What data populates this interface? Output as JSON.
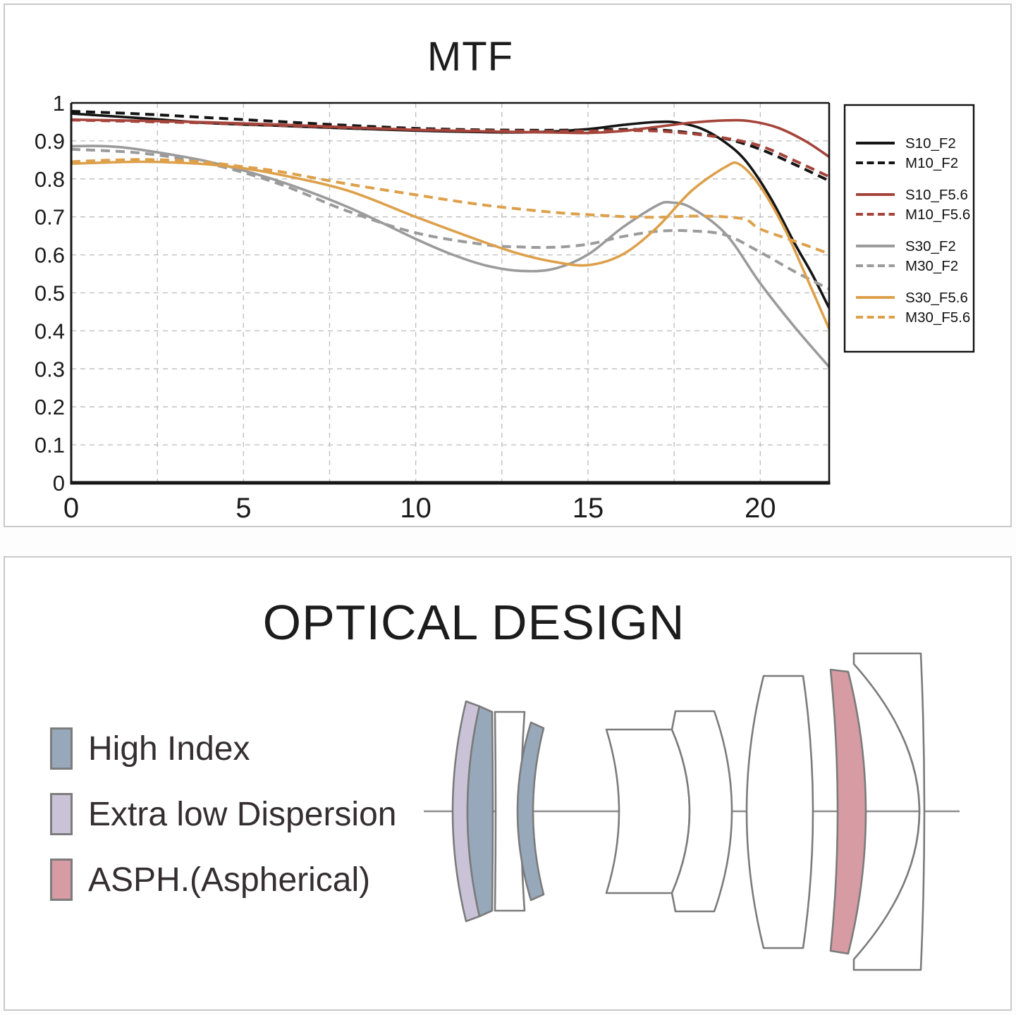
{
  "mtf_panel": {
    "title": "MTF",
    "chart_data": {
      "type": "line",
      "title": "MTF",
      "xlabel": "",
      "ylabel": "",
      "xlim": [
        0,
        22
      ],
      "ylim": [
        0,
        1
      ],
      "xticks": [
        0,
        5,
        10,
        15,
        20
      ],
      "yticks": [
        0,
        0.1,
        0.2,
        0.3,
        0.4,
        0.5,
        0.6,
        0.7,
        0.8,
        0.9,
        1
      ],
      "grid": {
        "on": true,
        "style": "dashed",
        "x_interval": 2.5,
        "y_interval": 0.1
      },
      "legend_position": "right",
      "frame_color": "#161616",
      "grid_color": "#bcbcbc",
      "series": [
        {
          "name": "S10_F2",
          "color": "#141414",
          "dash": false,
          "points": [
            [
              0,
              0.972
            ],
            [
              2,
              0.96
            ],
            [
              4,
              0.947
            ],
            [
              6,
              0.94
            ],
            [
              8,
              0.933
            ],
            [
              10,
              0.927
            ],
            [
              12,
              0.923
            ],
            [
              13.5,
              0.923
            ],
            [
              15,
              0.931
            ],
            [
              16,
              0.942
            ],
            [
              17,
              0.95
            ],
            [
              17.6,
              0.948
            ],
            [
              18.3,
              0.932
            ],
            [
              19,
              0.895
            ],
            [
              19.6,
              0.845
            ],
            [
              20.3,
              0.75
            ],
            [
              21,
              0.63
            ],
            [
              21.5,
              0.55
            ],
            [
              22,
              0.46
            ]
          ]
        },
        {
          "name": "M10_F2",
          "color": "#141414",
          "dash": true,
          "points": [
            [
              0,
              0.978
            ],
            [
              2,
              0.971
            ],
            [
              4,
              0.961
            ],
            [
              6,
              0.951
            ],
            [
              8,
              0.941
            ],
            [
              10,
              0.933
            ],
            [
              12,
              0.929
            ],
            [
              14,
              0.928
            ],
            [
              16,
              0.93
            ],
            [
              17,
              0.929
            ],
            [
              18,
              0.921
            ],
            [
              19,
              0.906
            ],
            [
              20,
              0.878
            ],
            [
              21,
              0.838
            ],
            [
              22,
              0.795
            ]
          ]
        },
        {
          "name": "S10_F5.6",
          "color": "#a5443a",
          "dash": false,
          "points": [
            [
              0,
              0.956
            ],
            [
              2,
              0.953
            ],
            [
              4,
              0.949
            ],
            [
              6,
              0.943
            ],
            [
              8,
              0.936
            ],
            [
              10,
              0.929
            ],
            [
              12,
              0.925
            ],
            [
              14,
              0.922
            ],
            [
              15,
              0.921
            ],
            [
              16,
              0.926
            ],
            [
              17,
              0.937
            ],
            [
              18,
              0.948
            ],
            [
              19,
              0.954
            ],
            [
              19.7,
              0.952
            ],
            [
              20.5,
              0.935
            ],
            [
              21.3,
              0.9
            ],
            [
              22,
              0.858
            ]
          ]
        },
        {
          "name": "M10_F5.6",
          "color": "#a5443a",
          "dash": true,
          "points": [
            [
              0,
              0.955
            ],
            [
              2,
              0.951
            ],
            [
              4,
              0.947
            ],
            [
              6,
              0.941
            ],
            [
              8,
              0.935
            ],
            [
              10,
              0.93
            ],
            [
              12,
              0.927
            ],
            [
              14,
              0.925
            ],
            [
              16,
              0.927
            ],
            [
              17,
              0.926
            ],
            [
              18,
              0.919
            ],
            [
              19,
              0.907
            ],
            [
              20,
              0.887
            ],
            [
              21,
              0.848
            ],
            [
              22,
              0.806
            ]
          ]
        },
        {
          "name": "S30_F2",
          "color": "#9b9b9b",
          "dash": false,
          "points": [
            [
              0,
              0.886
            ],
            [
              1,
              0.886
            ],
            [
              2,
              0.877
            ],
            [
              4,
              0.845
            ],
            [
              6,
              0.795
            ],
            [
              8,
              0.727
            ],
            [
              10,
              0.642
            ],
            [
              11,
              0.603
            ],
            [
              12,
              0.573
            ],
            [
              13,
              0.558
            ],
            [
              14,
              0.563
            ],
            [
              15,
              0.601
            ],
            [
              16,
              0.672
            ],
            [
              17,
              0.73
            ],
            [
              17.4,
              0.738
            ],
            [
              18,
              0.724
            ],
            [
              19,
              0.655
            ],
            [
              20,
              0.525
            ],
            [
              21,
              0.41
            ],
            [
              22,
              0.305
            ]
          ]
        },
        {
          "name": "M30_F2",
          "color": "#9b9b9b",
          "dash": true,
          "points": [
            [
              0,
              0.878
            ],
            [
              2,
              0.868
            ],
            [
              4,
              0.84
            ],
            [
              6,
              0.788
            ],
            [
              8,
              0.716
            ],
            [
              10,
              0.658
            ],
            [
              12,
              0.627
            ],
            [
              13,
              0.621
            ],
            [
              14,
              0.62
            ],
            [
              15,
              0.628
            ],
            [
              16,
              0.648
            ],
            [
              17,
              0.662
            ],
            [
              18,
              0.663
            ],
            [
              19,
              0.652
            ],
            [
              20,
              0.607
            ],
            [
              21,
              0.556
            ],
            [
              22,
              0.51
            ]
          ]
        },
        {
          "name": "S30_F5.6",
          "color": "#dda04b",
          "dash": false,
          "points": [
            [
              0,
              0.84
            ],
            [
              1,
              0.843
            ],
            [
              2,
              0.845
            ],
            [
              3,
              0.843
            ],
            [
              4,
              0.838
            ],
            [
              5,
              0.828
            ],
            [
              6,
              0.812
            ],
            [
              8,
              0.77
            ],
            [
              10,
              0.7
            ],
            [
              12,
              0.633
            ],
            [
              13,
              0.603
            ],
            [
              14,
              0.582
            ],
            [
              15,
              0.573
            ],
            [
              16,
              0.601
            ],
            [
              17,
              0.672
            ],
            [
              18,
              0.768
            ],
            [
              19,
              0.832
            ],
            [
              19.4,
              0.838
            ],
            [
              20,
              0.78
            ],
            [
              20.7,
              0.67
            ],
            [
              21.3,
              0.55
            ],
            [
              22,
              0.405
            ]
          ]
        },
        {
          "name": "M30_F5.6",
          "color": "#dda04b",
          "dash": true,
          "points": [
            [
              0,
              0.845
            ],
            [
              1,
              0.849
            ],
            [
              2,
              0.851
            ],
            [
              3,
              0.849
            ],
            [
              4,
              0.843
            ],
            [
              5,
              0.832
            ],
            [
              6,
              0.82
            ],
            [
              8,
              0.787
            ],
            [
              10,
              0.758
            ],
            [
              12,
              0.731
            ],
            [
              14,
              0.712
            ],
            [
              15,
              0.706
            ],
            [
              16,
              0.701
            ],
            [
              17,
              0.699
            ],
            [
              18,
              0.702
            ],
            [
              19,
              0.7
            ],
            [
              19.6,
              0.692
            ],
            [
              20,
              0.668
            ],
            [
              21,
              0.636
            ],
            [
              22,
              0.603
            ]
          ]
        }
      ]
    }
  },
  "optical_panel": {
    "title": "OPTICAL DESIGN",
    "legend": [
      {
        "label": "High Index",
        "material": "high-index"
      },
      {
        "label": "Extra low Dispersion",
        "material": "extra-low-dispersion"
      },
      {
        "label": "ASPH.(Aspherical)",
        "material": "aspherical"
      }
    ],
    "lens_diagram": {
      "materials": {
        "high-index": "#97a8bb",
        "extra-low-dispersion": "#cac3d7",
        "aspherical": "#d79ba3",
        "standard": "#ffffff"
      },
      "elements": [
        {
          "name": "element-1-ed-meniscus",
          "material": "extra-low-dispersion"
        },
        {
          "name": "element-2-high-index",
          "material": "high-index"
        },
        {
          "name": "element-3-standard",
          "material": "standard"
        },
        {
          "name": "element-4-high-index",
          "material": "high-index"
        },
        {
          "name": "element-5-standard",
          "material": "standard"
        },
        {
          "name": "element-6-standard",
          "material": "standard"
        },
        {
          "name": "element-7-biconvex",
          "material": "standard"
        },
        {
          "name": "element-8-aspherical",
          "material": "aspherical"
        },
        {
          "name": "element-9-rear-meniscus",
          "material": "standard"
        }
      ]
    }
  }
}
